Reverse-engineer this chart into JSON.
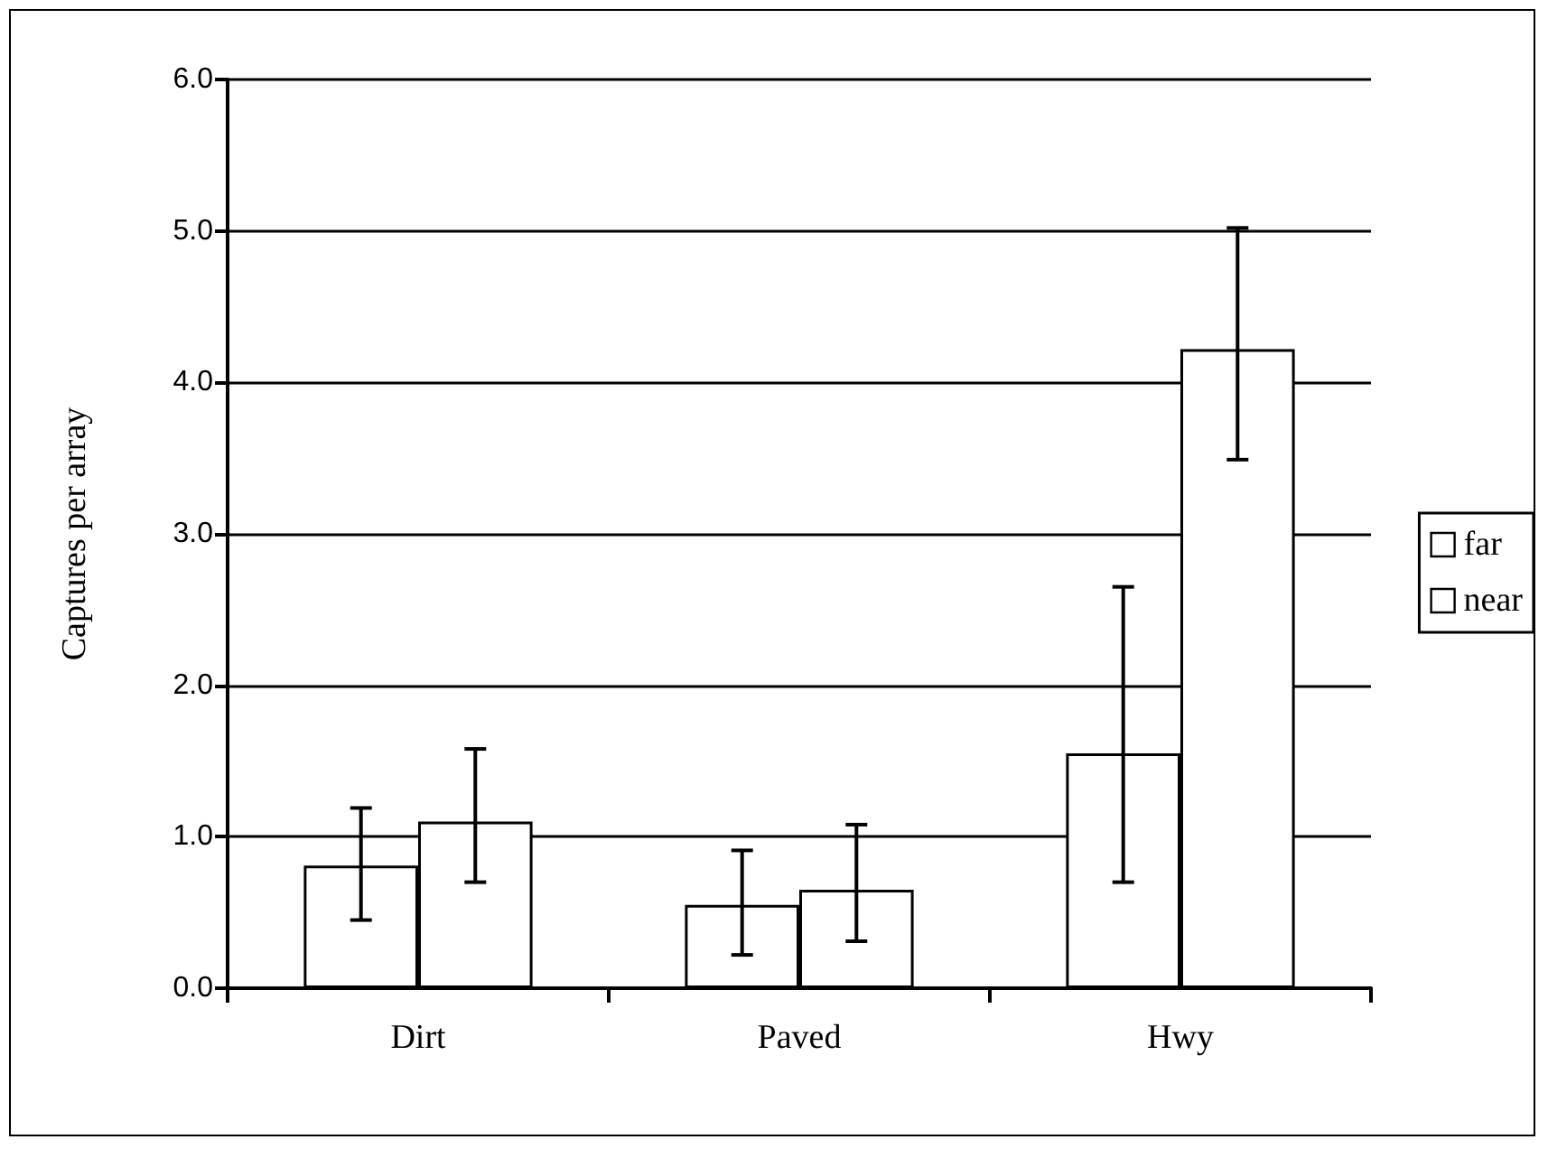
{
  "chart_data": {
    "type": "bar",
    "ylabel": "Captures per array",
    "categories": [
      "Dirt",
      "Paved",
      "Hwy"
    ],
    "series": [
      {
        "name": "far",
        "color": "#ffffff",
        "values": [
          0.81,
          0.55,
          1.55
        ],
        "errors": [
          [
            0.45,
            1.19
          ],
          [
            0.22,
            0.91
          ],
          [
            0.7,
            2.65
          ]
        ]
      },
      {
        "name": "near",
        "color": "#ffffff",
        "values": [
          1.1,
          0.65,
          4.22
        ],
        "errors": [
          [
            0.7,
            1.58
          ],
          [
            0.31,
            1.08
          ],
          [
            3.49,
            5.02
          ]
        ]
      }
    ],
    "ylim": [
      0,
      6
    ],
    "yticks": [
      {
        "value": 0,
        "label": "0.0"
      },
      {
        "value": 1,
        "label": "1.0"
      },
      {
        "value": 2,
        "label": "2.0"
      },
      {
        "value": 3,
        "label": "3.0"
      },
      {
        "value": 4,
        "label": "4.0"
      },
      {
        "value": 5,
        "label": "5.0"
      },
      {
        "value": 6,
        "label": "6.0"
      }
    ],
    "grid": "y",
    "legend": "right"
  }
}
